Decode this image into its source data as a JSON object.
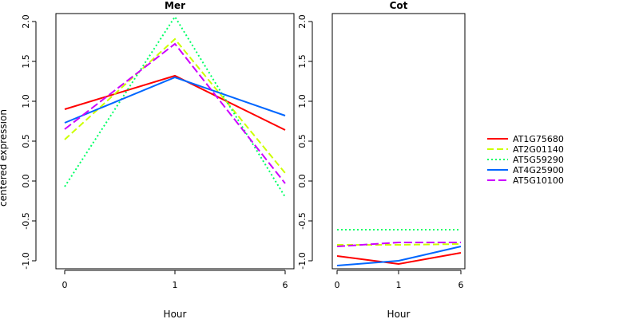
{
  "chart_data": [
    {
      "type": "line",
      "title": "Mer",
      "xlabel": "Hour",
      "ylabel": "centered expression",
      "categories": [
        "0",
        "1",
        "6"
      ],
      "ylim": [
        -1.1,
        2.1
      ],
      "yticks": [
        "-1.0",
        "-0.5",
        "0.0",
        "0.5",
        "1.0",
        "1.5",
        "2.0"
      ],
      "series": [
        {
          "name": "AT1G75680",
          "values": [
            0.9,
            1.32,
            0.64
          ],
          "color": "#ff0000",
          "dash": "solid"
        },
        {
          "name": "AT2G01140",
          "values": [
            0.52,
            1.78,
            0.1
          ],
          "color": "#ccff00",
          "dash": "dashed"
        },
        {
          "name": "AT5G59290",
          "values": [
            -0.07,
            2.06,
            -0.2
          ],
          "color": "#00ff66",
          "dash": "dotted"
        },
        {
          "name": "AT4G25900",
          "values": [
            0.73,
            1.3,
            0.82
          ],
          "color": "#0066ff",
          "dash": "solid"
        },
        {
          "name": "AT5G10100",
          "values": [
            0.65,
            1.72,
            -0.03
          ],
          "color": "#cc00ff",
          "dash": "longdash"
        }
      ]
    },
    {
      "type": "line",
      "title": "Cot",
      "xlabel": "Hour",
      "ylabel": "",
      "categories": [
        "0",
        "1",
        "6"
      ],
      "ylim": [
        -1.1,
        2.1
      ],
      "yticks": [
        "-1.0",
        "-0.5",
        "0.0",
        "0.5",
        "1.0",
        "1.5",
        "2.0"
      ],
      "series": [
        {
          "name": "AT1G75680",
          "values": [
            -0.94,
            -1.04,
            -0.9
          ],
          "color": "#ff0000",
          "dash": "solid"
        },
        {
          "name": "AT2G01140",
          "values": [
            -0.8,
            -0.8,
            -0.79
          ],
          "color": "#ccff00",
          "dash": "dashed"
        },
        {
          "name": "AT5G59290",
          "values": [
            -0.61,
            -0.61,
            -0.61
          ],
          "color": "#00ff66",
          "dash": "dotted"
        },
        {
          "name": "AT4G25900",
          "values": [
            -1.06,
            -1.0,
            -0.82
          ],
          "color": "#0066ff",
          "dash": "solid"
        },
        {
          "name": "AT5G10100",
          "values": [
            -0.82,
            -0.77,
            -0.77
          ],
          "color": "#cc00ff",
          "dash": "longdash"
        }
      ]
    }
  ],
  "legend": {
    "placement": "right",
    "entries": [
      {
        "name": "AT1G75680",
        "color": "#ff0000",
        "dash": "solid"
      },
      {
        "name": "AT2G01140",
        "color": "#ccff00",
        "dash": "dashed"
      },
      {
        "name": "AT5G59290",
        "color": "#00ff66",
        "dash": "dotted"
      },
      {
        "name": "AT4G25900",
        "color": "#0066ff",
        "dash": "solid"
      },
      {
        "name": "AT5G10100",
        "color": "#cc00ff",
        "dash": "longdash"
      }
    ]
  }
}
